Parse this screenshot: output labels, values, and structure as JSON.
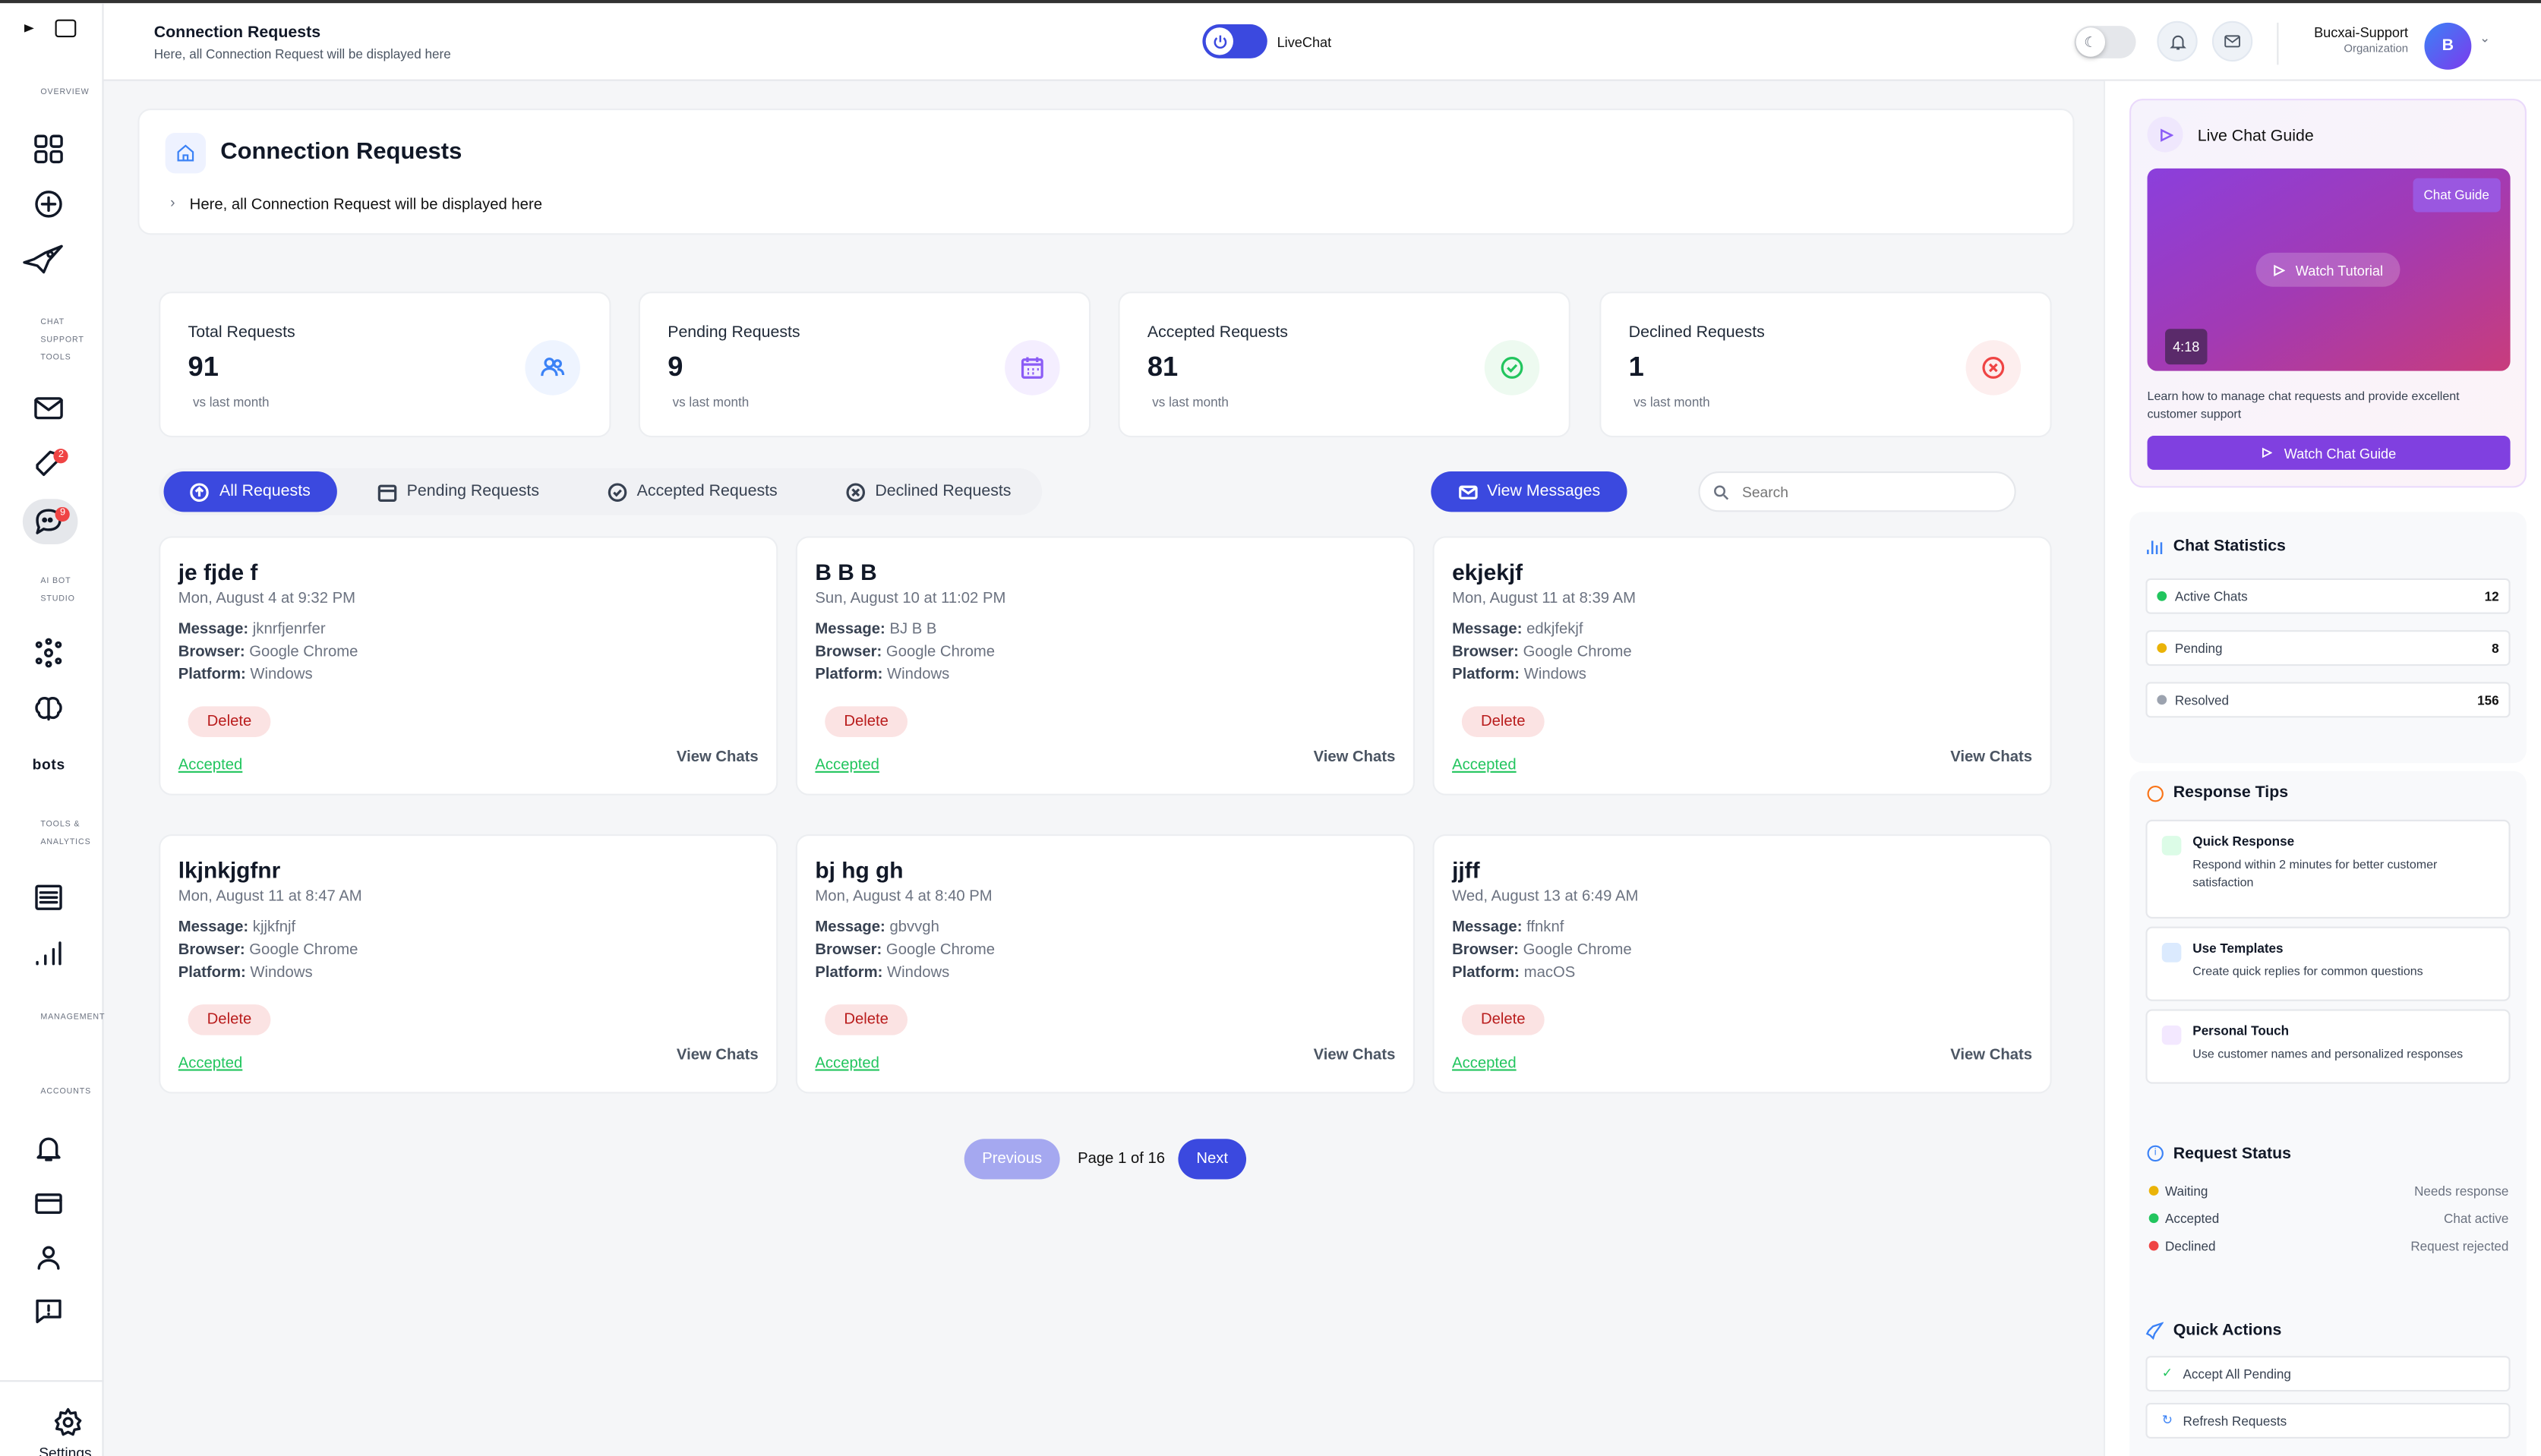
{
  "sidebar": {
    "sections": {
      "overview": "OVERVIEW",
      "chat_tools": "CHAT SUPPORT TOOLS",
      "ai_bot": "AI BOT STUDIO",
      "tools": "TOOLS & ANALYTICS",
      "management": "MANAGEMENT",
      "accounts": "ACCOUNTS"
    },
    "bots_label": "bots",
    "ticket_badge": "2",
    "chat_badge": "9",
    "settings": "Settings"
  },
  "header": {
    "title": "Connection Requests",
    "subtitle": "Here, all Connection Request will be displayed here",
    "livechat_label": "LiveChat",
    "user_name": "Bucxai-Support",
    "user_role": "Organization",
    "avatar_initial": "B"
  },
  "page": {
    "title": "Connection Requests",
    "breadcrumb": "Here, all Connection Request will be displayed here"
  },
  "stats": [
    {
      "title": "Total Requests",
      "value": "91",
      "sub": "vs last month",
      "icon": "users-icon",
      "color": "#3b82f6"
    },
    {
      "title": "Pending Requests",
      "value": "9",
      "sub": "vs last month",
      "icon": "calendar-icon",
      "color": "#8b5cf6"
    },
    {
      "title": "Accepted Requests",
      "value": "81",
      "sub": "vs last month",
      "icon": "check-circle-icon",
      "color": "#22c55e"
    },
    {
      "title": "Declined Requests",
      "value": "1",
      "sub": "vs last month",
      "icon": "x-circle-icon",
      "color": "#ef4444"
    }
  ],
  "tabs": [
    {
      "label": "All Requests"
    },
    {
      "label": "Pending Requests"
    },
    {
      "label": "Accepted Requests"
    },
    {
      "label": "Declined Requests"
    }
  ],
  "view_messages": "View Messages",
  "search_placeholder": "Search",
  "labels": {
    "message": "Message:",
    "browser": "Browser:",
    "platform": "Platform:",
    "delete": "Delete",
    "accepted": "Accepted",
    "view_chats": "View Chats"
  },
  "requests": [
    {
      "name": "je fjde f",
      "date": "Mon, August 4 at 9:32 PM",
      "message": "jknrfjenrfer",
      "browser": "Google Chrome",
      "platform": "Windows"
    },
    {
      "name": "B B B",
      "date": "Sun, August 10 at 11:02 PM",
      "message": "BJ B B",
      "browser": "Google Chrome",
      "platform": "Windows"
    },
    {
      "name": "ekjekjf",
      "date": "Mon, August 11 at 8:39 AM",
      "message": "edkjfekjf",
      "browser": "Google Chrome",
      "platform": "Windows"
    },
    {
      "name": "lkjnkjgfnr",
      "date": "Mon, August 11 at 8:47 AM",
      "message": "kjjkfnjf",
      "browser": "Google Chrome",
      "platform": "Windows"
    },
    {
      "name": "bj hg gh",
      "date": "Mon, August 4 at 8:40 PM",
      "message": "gbvvgh",
      "browser": "Google Chrome",
      "platform": "Windows"
    },
    {
      "name": "jjff",
      "date": "Wed, August 13 at 6:49 AM",
      "message": "ffnknf",
      "browser": "Google Chrome",
      "platform": "macOS"
    }
  ],
  "pagination": {
    "previous": "Previous",
    "page": "Page 1 of 16",
    "next": "Next"
  },
  "guide": {
    "title": "Live Chat Guide",
    "badge": "Chat Guide",
    "watch": "Watch Tutorial",
    "duration": "4:18",
    "desc": "Learn how to manage chat requests and provide excellent customer support",
    "button": "Watch Chat Guide"
  },
  "chat_stats": {
    "title": "Chat Statistics",
    "rows": [
      {
        "label": "Active Chats",
        "value": "12",
        "color": "#22c55e"
      },
      {
        "label": "Pending",
        "value": "8",
        "color": "#eab308"
      },
      {
        "label": "Resolved",
        "value": "156",
        "color": "#9ca3af"
      }
    ]
  },
  "tips": {
    "title": "Response Tips",
    "items": [
      {
        "title": "Quick Response",
        "desc": "Respond within 2 minutes for better customer satisfaction"
      },
      {
        "title": "Use Templates",
        "desc": "Create quick replies for common questions"
      },
      {
        "title": "Personal Touch",
        "desc": "Use customer names and personalized responses"
      }
    ]
  },
  "req_status": {
    "title": "Request Status",
    "rows": [
      {
        "label": "Waiting",
        "desc": "Needs response",
        "color": "#eab308"
      },
      {
        "label": "Accepted",
        "desc": "Chat active",
        "color": "#22c55e"
      },
      {
        "label": "Declined",
        "desc": "Request rejected",
        "color": "#ef4444"
      }
    ]
  },
  "quick_actions": {
    "title": "Quick Actions",
    "items": [
      {
        "label": "Accept All Pending"
      },
      {
        "label": "Refresh Requests"
      }
    ]
  }
}
